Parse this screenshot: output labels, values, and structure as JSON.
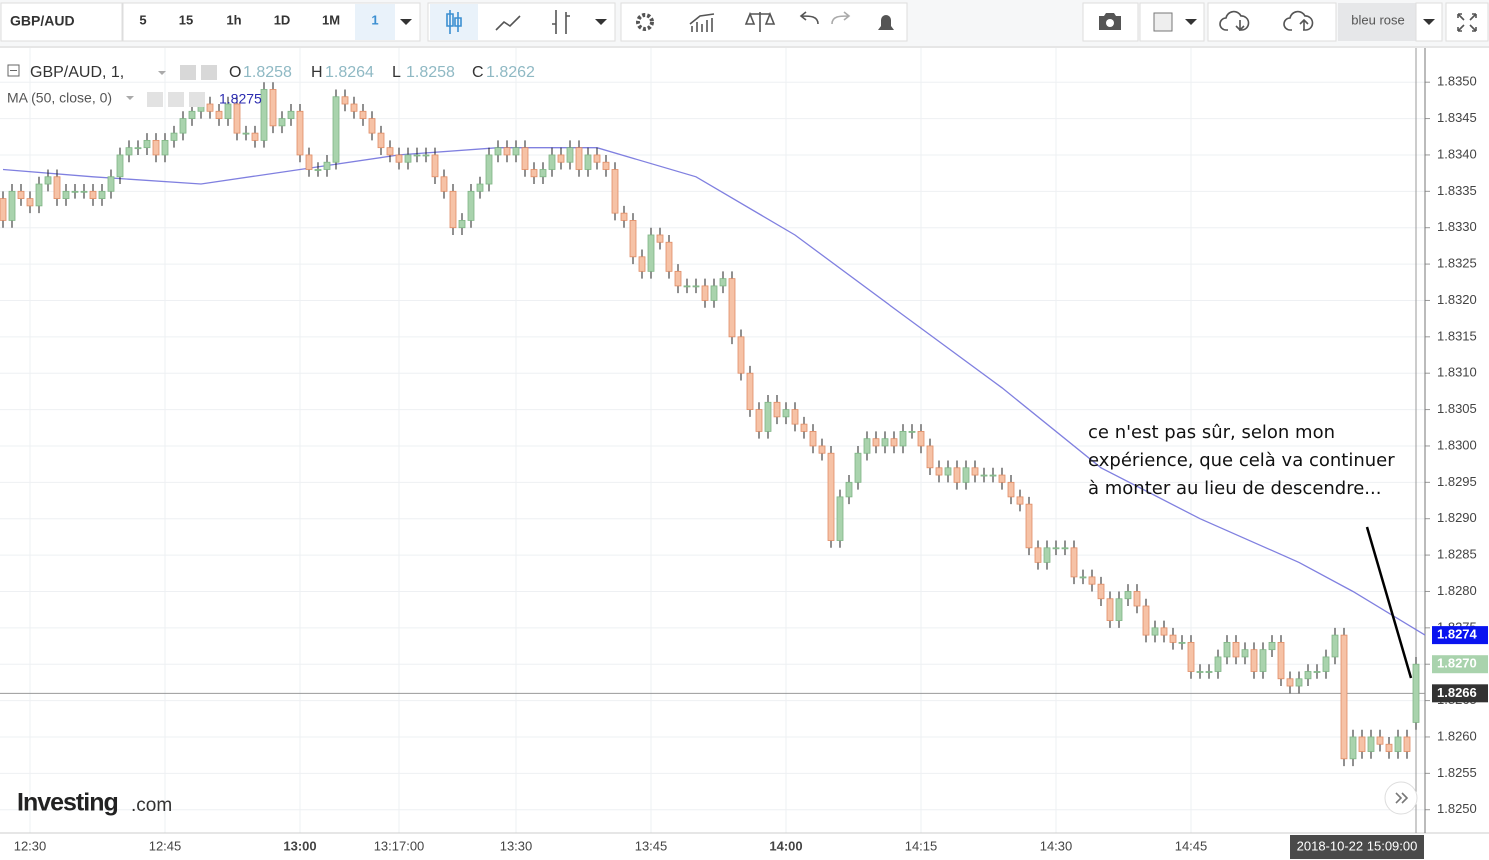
{
  "toolbar": {
    "symbol": "GBP/AUD",
    "intervals": [
      "5",
      "15",
      "1h",
      "1D",
      "1M"
    ],
    "interval": "1",
    "theme": "bleu rose"
  },
  "legend": {
    "symbol": "GBP/AUD, 1,",
    "ohlc": [
      {
        "key": "O",
        "value": 1.8258
      },
      {
        "key": "H",
        "value": 1.8264
      },
      {
        "key": "L",
        "value": 1.8258
      },
      {
        "key": "C",
        "value": 1.8262
      }
    ],
    "ma_value": 1.8275
  },
  "annotation": [
    "ce n'est pas sûr, selon mon",
    "expérience, que celà va continuer",
    "à monter au lieu de descendre..."
  ],
  "watermark": {
    "brand": "Investing",
    "suffix": ".com"
  },
  "chart_data": {
    "type": "candlestick",
    "up_color": "#a9d3ad",
    "down_color": "#f6c2a6",
    "grid": true,
    "categories": [
      null,
      null,
      null,
      "12:30",
      null,
      null,
      null,
      null,
      null,
      null,
      null,
      null,
      null,
      null,
      null,
      null,
      null,
      null,
      "12:45",
      null,
      null,
      null,
      null,
      null,
      null,
      null,
      null,
      null,
      null,
      null,
      null,
      null,
      null,
      "13:00",
      null,
      null,
      null,
      null,
      null,
      null,
      null,
      null,
      null,
      null,
      "13:17:00",
      null,
      null,
      null,
      null,
      null,
      null,
      null,
      null,
      null,
      null,
      null,
      null,
      "13:30",
      null,
      null,
      null,
      null,
      null,
      null,
      null,
      null,
      null,
      null,
      null,
      null,
      null,
      null,
      "13:45",
      null,
      null,
      null,
      null,
      null,
      null,
      null,
      null,
      null,
      null,
      null,
      null,
      null,
      null,
      "14:00",
      null,
      null,
      null,
      null,
      null,
      null,
      null,
      null,
      null,
      null,
      null,
      null,
      null,
      null,
      "14:15",
      null,
      null,
      null,
      null,
      null,
      null,
      null,
      null,
      null,
      null,
      null,
      null,
      null,
      null,
      "14:30",
      null,
      null,
      null,
      null,
      null,
      null,
      null,
      null,
      null,
      null,
      null,
      null,
      null,
      null,
      "14:45",
      null,
      null,
      null,
      null,
      null,
      null,
      null,
      null,
      null,
      null,
      null,
      null,
      null,
      null,
      null,
      null,
      null,
      null,
      null,
      null,
      null,
      null,
      null,
      null,
      "2018-10-22 15:09:00"
    ],
    "open": [
      1.8334,
      1.8331,
      1.8335,
      1.8334,
      1.8333,
      1.8336,
      1.8337,
      1.8334,
      1.8335,
      1.8335,
      1.8335,
      1.8334,
      1.8335,
      1.8337,
      1.834,
      1.8341,
      1.8341,
      1.8342,
      1.834,
      1.8342,
      1.8343,
      1.8345,
      1.8346,
      1.8347,
      1.8346,
      1.8345,
      1.8347,
      1.8343,
      1.8343,
      1.8342,
      1.8349,
      1.8344,
      1.8345,
      1.8346,
      1.834,
      1.8338,
      1.8338,
      1.8339,
      1.8348,
      1.8347,
      1.8346,
      1.8345,
      1.8343,
      1.8341,
      1.834,
      1.8339,
      1.834,
      1.834,
      1.834,
      1.8337,
      1.8335,
      1.833,
      1.8331,
      1.8335,
      1.8336,
      1.834,
      1.8341,
      1.834,
      1.8341,
      1.8338,
      1.8337,
      1.8338,
      1.834,
      1.8339,
      1.8341,
      1.8338,
      1.834,
      1.8339,
      1.8338,
      1.8332,
      1.8331,
      1.8326,
      1.8324,
      1.8329,
      1.8328,
      1.8324,
      1.8322,
      1.8322,
      1.8322,
      1.832,
      1.8322,
      1.8323,
      1.8315,
      1.831,
      1.8305,
      1.8302,
      1.8306,
      1.8304,
      1.8305,
      1.8303,
      1.8302,
      1.83,
      1.8299,
      1.8287,
      1.8293,
      1.8295,
      1.8299,
      1.8301,
      1.83,
      1.8301,
      1.83,
      1.8302,
      1.8302,
      1.83,
      1.8297,
      1.8296,
      1.8297,
      1.8295,
      1.8297,
      1.8296,
      1.8296,
      1.8296,
      1.8295,
      1.8293,
      1.8292,
      1.8286,
      1.8284,
      1.8286,
      1.8286,
      1.8286,
      1.8282,
      1.8282,
      1.8281,
      1.8279,
      1.8276,
      1.8279,
      1.828,
      1.8278,
      1.8274,
      1.8275,
      1.8274,
      1.8273,
      1.8273,
      1.8269,
      1.8269,
      1.8269,
      1.8271,
      1.8273,
      1.8271,
      1.8272,
      1.8269,
      1.8272,
      1.8273,
      1.8268,
      1.8267,
      1.8268,
      1.8269,
      1.8269,
      1.8271,
      1.8274,
      1.8257,
      1.826,
      1.8258,
      1.826,
      1.8259,
      1.8258,
      1.826,
      1.8262
    ],
    "high": [
      1.8335,
      1.8336,
      1.8336,
      1.8335,
      1.8337,
      1.8338,
      1.8338,
      1.8336,
      1.8336,
      1.8336,
      1.8336,
      1.8336,
      1.8338,
      1.8341,
      1.8342,
      1.8342,
      1.8343,
      1.8343,
      1.8343,
      1.8344,
      1.8346,
      1.8347,
      1.8348,
      1.8348,
      1.8347,
      1.8348,
      1.8348,
      1.8344,
      1.8344,
      1.835,
      1.835,
      1.8346,
      1.8347,
      1.8347,
      1.8341,
      1.8339,
      1.834,
      1.8349,
      1.8349,
      1.8348,
      1.8347,
      1.8346,
      1.8344,
      1.8342,
      1.8341,
      1.8341,
      1.8341,
      1.8341,
      1.8341,
      1.8338,
      1.8336,
      1.8332,
      1.8336,
      1.8337,
      1.8341,
      1.8342,
      1.8342,
      1.8342,
      1.8342,
      1.8339,
      1.8339,
      1.8341,
      1.8341,
      1.8342,
      1.8342,
      1.8341,
      1.8341,
      1.834,
      1.8339,
      1.8333,
      1.8332,
      1.8327,
      1.833,
      1.833,
      1.8329,
      1.8325,
      1.8323,
      1.8323,
      1.8323,
      1.8323,
      1.8324,
      1.8324,
      1.8316,
      1.8311,
      1.8306,
      1.8307,
      1.8307,
      1.8306,
      1.8306,
      1.8304,
      1.8303,
      1.8301,
      1.83,
      1.8294,
      1.8296,
      1.83,
      1.8302,
      1.8302,
      1.8302,
      1.8302,
      1.8303,
      1.8303,
      1.8303,
      1.8301,
      1.8298,
      1.8298,
      1.8298,
      1.8298,
      1.8298,
      1.8297,
      1.8297,
      1.8297,
      1.8296,
      1.8294,
      1.8293,
      1.8287,
      1.8287,
      1.8287,
      1.8287,
      1.8287,
      1.8283,
      1.8283,
      1.8282,
      1.828,
      1.828,
      1.8281,
      1.8281,
      1.8279,
      1.8276,
      1.8276,
      1.8275,
      1.8274,
      1.8274,
      1.827,
      1.827,
      1.8272,
      1.8274,
      1.8274,
      1.8273,
      1.8273,
      1.8273,
      1.8274,
      1.8274,
      1.8269,
      1.8269,
      1.827,
      1.827,
      1.8272,
      1.8275,
      1.8275,
      1.8261,
      1.8261,
      1.8261,
      1.8261,
      1.826,
      1.8261,
      1.8261,
      1.8271
    ],
    "low": [
      1.833,
      1.833,
      1.8333,
      1.8332,
      1.8332,
      1.8335,
      1.8333,
      1.8333,
      1.8334,
      1.8334,
      1.8333,
      1.8333,
      1.8334,
      1.8336,
      1.8339,
      1.834,
      1.834,
      1.8339,
      1.8339,
      1.8341,
      1.8342,
      1.8344,
      1.8345,
      1.8345,
      1.8344,
      1.8344,
      1.8342,
      1.8342,
      1.8341,
      1.8341,
      1.8343,
      1.8343,
      1.8344,
      1.8339,
      1.8337,
      1.8337,
      1.8337,
      1.8338,
      1.8346,
      1.8345,
      1.8344,
      1.8342,
      1.834,
      1.8339,
      1.8338,
      1.8338,
      1.8339,
      1.8339,
      1.8336,
      1.8334,
      1.8329,
      1.8329,
      1.833,
      1.8334,
      1.8335,
      1.8339,
      1.8339,
      1.8339,
      1.8337,
      1.8336,
      1.8336,
      1.8337,
      1.8338,
      1.8338,
      1.8337,
      1.8337,
      1.8338,
      1.8337,
      1.8331,
      1.833,
      1.8325,
      1.8323,
      1.8323,
      1.8327,
      1.8323,
      1.8321,
      1.8321,
      1.8321,
      1.8319,
      1.8319,
      1.8321,
      1.8314,
      1.8309,
      1.8304,
      1.8301,
      1.8301,
      1.8303,
      1.8303,
      1.8302,
      1.8301,
      1.8299,
      1.8298,
      1.8286,
      1.8286,
      1.8292,
      1.8294,
      1.8298,
      1.8299,
      1.8299,
      1.8299,
      1.8299,
      1.8301,
      1.8299,
      1.8296,
      1.8295,
      1.8295,
      1.8294,
      1.8294,
      1.8295,
      1.8295,
      1.8295,
      1.8294,
      1.8292,
      1.8291,
      1.8285,
      1.8283,
      1.8283,
      1.8285,
      1.8285,
      1.8281,
      1.8281,
      1.828,
      1.8278,
      1.8275,
      1.8275,
      1.8278,
      1.8277,
      1.8273,
      1.8273,
      1.8273,
      1.8272,
      1.8272,
      1.8268,
      1.8268,
      1.8268,
      1.8268,
      1.827,
      1.827,
      1.827,
      1.8268,
      1.8268,
      1.8271,
      1.8267,
      1.8266,
      1.8266,
      1.8267,
      1.8268,
      1.8268,
      1.827,
      1.8256,
      1.8256,
      1.8257,
      1.8257,
      1.8258,
      1.8257,
      1.8257,
      1.8257,
      1.8261
    ],
    "close": [
      1.8331,
      1.8335,
      1.8334,
      1.8333,
      1.8336,
      1.8337,
      1.8334,
      1.8335,
      1.8335,
      1.8335,
      1.8334,
      1.8335,
      1.8337,
      1.834,
      1.8341,
      1.8341,
      1.8342,
      1.834,
      1.8342,
      1.8343,
      1.8345,
      1.8346,
      1.8347,
      1.8346,
      1.8345,
      1.8347,
      1.8343,
      1.8343,
      1.8342,
      1.8349,
      1.8344,
      1.8345,
      1.8346,
      1.834,
      1.8338,
      1.8338,
      1.8339,
      1.8348,
      1.8347,
      1.8346,
      1.8345,
      1.8343,
      1.8341,
      1.834,
      1.8339,
      1.834,
      1.834,
      1.834,
      1.8337,
      1.8335,
      1.833,
      1.8331,
      1.8335,
      1.8336,
      1.834,
      1.8341,
      1.834,
      1.8341,
      1.8338,
      1.8337,
      1.8338,
      1.834,
      1.8339,
      1.8341,
      1.8338,
      1.834,
      1.8339,
      1.8338,
      1.8332,
      1.8331,
      1.8326,
      1.8324,
      1.8329,
      1.8328,
      1.8324,
      1.8322,
      1.8322,
      1.8322,
      1.832,
      1.8322,
      1.8323,
      1.8315,
      1.831,
      1.8305,
      1.8302,
      1.8306,
      1.8304,
      1.8305,
      1.8303,
      1.8302,
      1.83,
      1.8299,
      1.8287,
      1.8293,
      1.8295,
      1.8299,
      1.8301,
      1.83,
      1.8301,
      1.83,
      1.8302,
      1.8302,
      1.83,
      1.8297,
      1.8296,
      1.8297,
      1.8295,
      1.8297,
      1.8296,
      1.8296,
      1.8296,
      1.8295,
      1.8293,
      1.8292,
      1.8286,
      1.8284,
      1.8286,
      1.8286,
      1.8286,
      1.8282,
      1.8282,
      1.8281,
      1.8279,
      1.8276,
      1.8279,
      1.828,
      1.8278,
      1.8274,
      1.8275,
      1.8274,
      1.8273,
      1.8273,
      1.8269,
      1.8269,
      1.8269,
      1.8271,
      1.8273,
      1.8271,
      1.8272,
      1.8269,
      1.8272,
      1.8273,
      1.8268,
      1.8267,
      1.8268,
      1.8269,
      1.8269,
      1.8271,
      1.8274,
      1.8257,
      1.826,
      1.8258,
      1.826,
      1.8259,
      1.8258,
      1.826,
      1.8258,
      1.827
    ],
    "ma": {
      "name": "MA (50, close, 0)",
      "color": "#8080e0",
      "x": [
        0,
        10,
        22,
        33,
        44,
        55,
        66,
        77,
        88,
        100,
        111,
        122,
        133,
        144,
        150,
        158
      ],
      "values": [
        1.8338,
        1.8337,
        1.8336,
        1.8338,
        1.834,
        1.8341,
        1.8341,
        1.8337,
        1.8329,
        1.8318,
        1.8308,
        1.8297,
        1.829,
        1.8284,
        1.828,
        1.8274
      ]
    },
    "ylim": [
      1.82468,
      1.83547
    ],
    "yticks": [
      {
        "value": 1.825,
        "label": "1.8250"
      },
      {
        "value": 1.8255,
        "label": "1.8255"
      },
      {
        "value": 1.826,
        "label": "1.8260"
      },
      {
        "value": 1.8265,
        "label": "1.8265"
      },
      {
        "value": 1.827,
        "label": "1.8270"
      },
      {
        "value": 1.8275,
        "label": "1.8275"
      },
      {
        "value": 1.828,
        "label": "1.8280"
      },
      {
        "value": 1.8285,
        "label": "1.8285"
      },
      {
        "value": 1.829,
        "label": "1.8290"
      },
      {
        "value": 1.8295,
        "label": "1.8295"
      },
      {
        "value": 1.83,
        "label": "1.8300"
      },
      {
        "value": 1.8305,
        "label": "1.8305"
      },
      {
        "value": 1.831,
        "label": "1.8310"
      },
      {
        "value": 1.8315,
        "label": "1.8315"
      },
      {
        "value": 1.832,
        "label": "1.8320"
      },
      {
        "value": 1.8325,
        "label": "1.8325"
      },
      {
        "value": 1.833,
        "label": "1.8330"
      },
      {
        "value": 1.8335,
        "label": "1.8335"
      },
      {
        "value": 1.834,
        "label": "1.8340"
      },
      {
        "value": 1.8345,
        "label": "1.8345"
      },
      {
        "value": 1.835,
        "label": "1.8350"
      }
    ],
    "price_labels": [
      {
        "value": 1.8274,
        "color": "#0a14f0"
      },
      {
        "value": 1.827,
        "label": "1.8270",
        "color": "#a9d3ad"
      },
      {
        "value": 1.8266,
        "color": "#333333"
      }
    ]
  }
}
